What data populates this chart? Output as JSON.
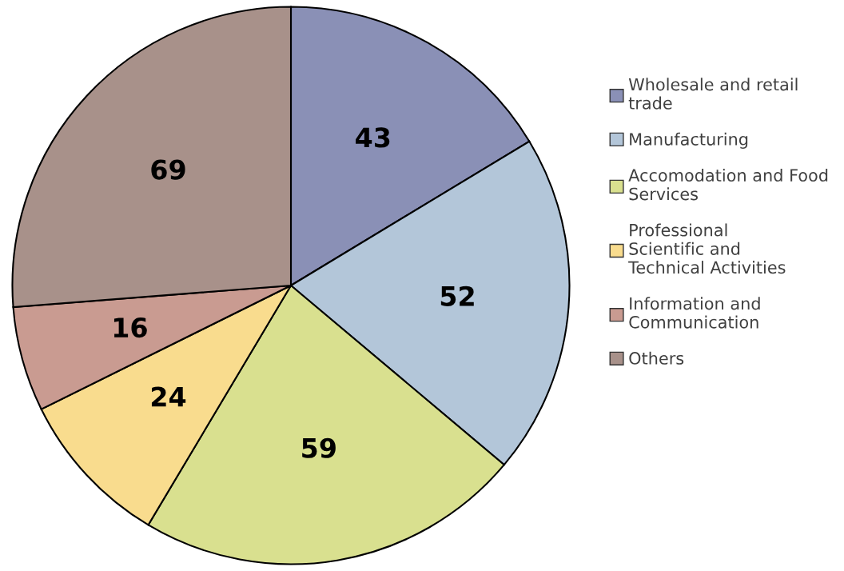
{
  "chart_data": {
    "type": "pie",
    "categories": [
      "Wholesale and retail trade",
      "Manufacturing",
      "Accomodation and Food Services",
      "Professional Scientific and Technical Activities",
      "Information and Communication",
      "Others"
    ],
    "values": [
      43,
      52,
      59,
      24,
      16,
      69
    ],
    "colors": [
      "#8a90b6",
      "#b3c6d9",
      "#d9e08f",
      "#f9dc8e",
      "#c99b91",
      "#a8918a"
    ],
    "data_labels": true,
    "legend": "right"
  }
}
